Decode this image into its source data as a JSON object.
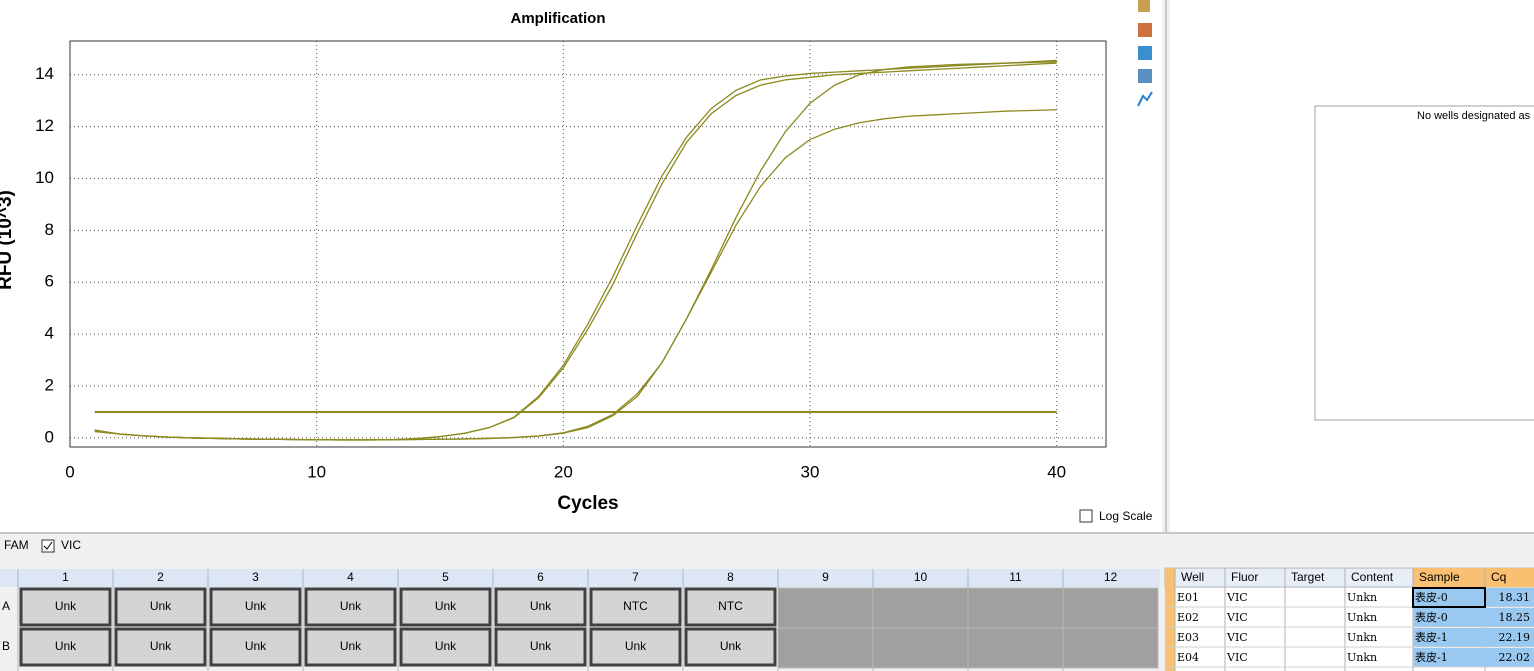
{
  "chart_data": {
    "type": "line",
    "title": "Amplification",
    "x_label": "Cycles",
    "y_label": "RFU (10^3)",
    "x": [
      1,
      2,
      3,
      4,
      5,
      6,
      7,
      8,
      9,
      10,
      11,
      12,
      13,
      14,
      15,
      16,
      17,
      18,
      19,
      20,
      21,
      22,
      23,
      24,
      25,
      26,
      27,
      28,
      29,
      30,
      31,
      32,
      33,
      34,
      35,
      36,
      37,
      38,
      39,
      40
    ],
    "series": [
      {
        "color": "#8b8a1e",
        "values": [
          0.3,
          0.15,
          0.08,
          0.03,
          0.0,
          -0.02,
          -0.04,
          -0.05,
          -0.06,
          -0.07,
          -0.08,
          -0.08,
          -0.07,
          -0.03,
          0.05,
          0.18,
          0.4,
          0.8,
          1.6,
          2.8,
          4.4,
          6.2,
          8.2,
          10.1,
          11.6,
          12.7,
          13.4,
          13.8,
          13.95,
          14.05,
          14.1,
          14.15,
          14.2,
          14.25,
          14.3,
          14.35,
          14.4,
          14.45,
          14.5,
          14.55
        ]
      },
      {
        "color": "#8b8a1e",
        "values": [
          0.3,
          0.15,
          0.08,
          0.03,
          0.0,
          -0.02,
          -0.04,
          -0.05,
          -0.06,
          -0.07,
          -0.08,
          -0.08,
          -0.07,
          -0.03,
          0.05,
          0.18,
          0.4,
          0.78,
          1.55,
          2.7,
          4.2,
          5.9,
          7.9,
          9.8,
          11.4,
          12.5,
          13.2,
          13.6,
          13.8,
          13.9,
          14.0,
          14.05,
          14.1,
          14.15,
          14.2,
          14.25,
          14.3,
          14.35,
          14.4,
          14.45
        ]
      },
      {
        "color": "#8b8a1e",
        "values": [
          0.25,
          0.15,
          0.08,
          0.03,
          0.0,
          -0.02,
          -0.04,
          -0.05,
          -0.06,
          -0.07,
          -0.07,
          -0.07,
          -0.07,
          -0.06,
          -0.05,
          -0.04,
          -0.02,
          0.02,
          0.08,
          0.2,
          0.45,
          0.9,
          1.7,
          2.9,
          4.6,
          6.5,
          8.5,
          10.3,
          11.8,
          12.9,
          13.6,
          14.0,
          14.2,
          14.3,
          14.35,
          14.4,
          14.42,
          14.45,
          14.47,
          14.5
        ]
      },
      {
        "color": "#8b8a1e",
        "values": [
          0.25,
          0.15,
          0.08,
          0.03,
          0.0,
          -0.02,
          -0.04,
          -0.05,
          -0.06,
          -0.07,
          -0.07,
          -0.07,
          -0.07,
          -0.06,
          -0.05,
          -0.04,
          -0.02,
          0.01,
          0.07,
          0.18,
          0.4,
          0.85,
          1.6,
          2.9,
          4.6,
          6.4,
          8.2,
          9.7,
          10.8,
          11.5,
          11.9,
          12.15,
          12.3,
          12.4,
          12.45,
          12.5,
          12.55,
          12.6,
          12.62,
          12.65
        ]
      }
    ],
    "threshold": 1.0,
    "threshold_color": "#8b8a1e",
    "xlim": [
      0,
      42
    ],
    "xticks": [
      0,
      10,
      20,
      30,
      40
    ],
    "ylim": [
      -0.35,
      15.3
    ],
    "yticks": [
      0,
      2,
      4,
      6,
      8,
      10,
      12,
      14
    ],
    "grid": true,
    "log_scale": false
  },
  "controls": {
    "log_scale_label": "Log Scale",
    "fluors": [
      "FAM",
      "VIC"
    ]
  },
  "side_panel": {
    "message": "No wells designated as S"
  },
  "plate": {
    "columns": [
      1,
      2,
      3,
      4,
      5,
      6,
      7,
      8,
      9,
      10,
      11,
      12
    ],
    "rows": [
      {
        "label": "A",
        "cells": [
          "Unk",
          "Unk",
          "Unk",
          "Unk",
          "Unk",
          "Unk",
          "NTC",
          "NTC",
          null,
          null,
          null,
          null
        ]
      },
      {
        "label": "B",
        "cells": [
          "Unk",
          "Unk",
          "Unk",
          "Unk",
          "Unk",
          "Unk",
          "Unk",
          "Unk",
          null,
          null,
          null,
          null
        ]
      }
    ]
  },
  "table": {
    "headers": [
      "Well",
      "Fluor",
      "Target",
      "Content",
      "Sample",
      "Cq"
    ],
    "rows": [
      {
        "well": "E01",
        "fluor": "VIC",
        "content": "Unkn",
        "sample": "表皮-0",
        "cq": 18.31
      },
      {
        "well": "E02",
        "fluor": "VIC",
        "content": "Unkn",
        "sample": "表皮-0",
        "cq": 18.25
      },
      {
        "well": "E03",
        "fluor": "VIC",
        "content": "Unkn",
        "sample": "表皮-1",
        "cq": 22.19
      },
      {
        "well": "E04",
        "fluor": "VIC",
        "content": "Unkn",
        "sample": "表皮-1",
        "cq": 22.02
      }
    ]
  }
}
